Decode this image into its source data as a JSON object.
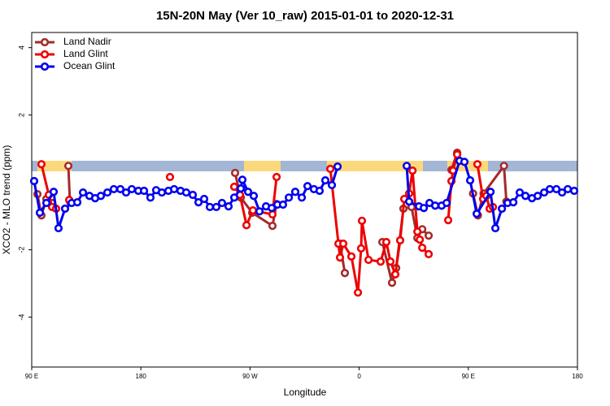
{
  "chart_data": {
    "type": "line",
    "title": "15N-20N May (Ver 10_raw)   2015-01-01 to 2020-12-31",
    "x_label": "Longitude",
    "y_label": "XCO2 - MLO trend (ppm)",
    "xlim": [
      90,
      540
    ],
    "ylim": [
      -5.48,
      4.45
    ],
    "xticks": [
      {
        "value": 90,
        "label": "90 E"
      },
      {
        "value": 180,
        "label": "180"
      },
      {
        "value": 270,
        "label": "90 W"
      },
      {
        "value": 360,
        "label": "0"
      },
      {
        "value": 450,
        "label": "90 E"
      },
      {
        "value": 540,
        "label": "180"
      }
    ],
    "yticks": [
      -4,
      -2,
      2,
      4
    ],
    "legend": "top-left",
    "series": [
      {
        "name": "Land Nadir",
        "color": "#a52a2a",
        "x": [
          94.7,
          98.0,
          102.1,
          106.8,
          null,
          120.2,
          121.5,
          null,
          257.7,
          262.4,
          271.8,
          288.5,
          291.9,
          null,
          344.2,
          348.2,
          null,
          379.1,
          387.1,
          390.5,
          396.5,
          403.2,
          408.0,
          412.0,
          417.3,
          null,
          436.1,
          440.8,
          442.8,
          null,
          453.9,
          457.9,
          462.6,
          479.4,
          481.4
        ],
        "values": [
          -0.35,
          -0.98,
          -0.49,
          -0.61,
          null,
          0.49,
          -0.57,
          null,
          0.28,
          -0.45,
          -0.9,
          -1.29,
          -0.64,
          null,
          -1.82,
          -2.69,
          null,
          -1.77,
          -2.98,
          -2.54,
          -0.78,
          -0.73,
          -1.65,
          -1.39,
          -1.58,
          null,
          0.37,
          0.88,
          0.64,
          null,
          -0.33,
          -0.98,
          -0.33,
          0.49,
          -0.57
        ]
      },
      {
        "name": "Land Glint",
        "color": "#ee0000",
        "x": [
          98.0,
          104.1,
          106.8,
          110.1,
          null,
          120.9,
          null,
          204.0,
          null,
          257.0,
          261.7,
          267.1,
          272.4,
          288.5,
          291.9,
          null,
          336.2,
          342.9,
          344.2,
          346.9,
          353.6,
          359.0,
          361.6,
          362.3,
          367.7,
          377.7,
          382.4,
          385.8,
          389.8,
          393.8,
          397.2,
          401.2,
          404.0,
          408.0,
          410.0,
          412.0,
          417.3,
          null,
          433.4,
          436.1,
          437.4,
          440.8,
          null,
          457.5,
          462.2,
          464.9,
          467.6,
          470.3
        ],
        "values": [
          0.54,
          -0.37,
          -0.73,
          -0.78,
          null,
          -0.52,
          null,
          0.16,
          null,
          -0.13,
          -0.37,
          -1.27,
          -0.83,
          -0.95,
          0.16,
          null,
          0.4,
          -1.82,
          -2.23,
          -1.82,
          -2.2,
          -3.27,
          -1.96,
          -1.14,
          -2.3,
          -2.35,
          -1.77,
          -2.35,
          -2.73,
          -1.72,
          -0.49,
          -0.33,
          0.35,
          -1.46,
          -1.7,
          -1.94,
          -2.13,
          null,
          -1.12,
          0.04,
          0.35,
          0.83,
          null,
          0.54,
          -0.49,
          -0.4,
          -0.78,
          -0.73
        ]
      },
      {
        "name": "Ocean Glint",
        "color": "#0000ee",
        "x": [
          92.0,
          96.7,
          102.1,
          108.1,
          112.1,
          117.5,
          122.9,
          127.6,
          132.3,
          137.6,
          142.3,
          147.0,
          152.4,
          157.7,
          163.1,
          167.8,
          172.5,
          177.9,
          182.6,
          187.9,
          192.6,
          197.3,
          202.7,
          207.4,
          212.7,
          217.4,
          222.8,
          227.5,
          232.2,
          236.9,
          242.2,
          246.9,
          252.3,
          257.0,
          262.4,
          263.7,
          268.4,
          273.1,
          277.8,
          283.2,
          287.9,
          292.6,
          297.2,
          302.0,
          307.3,
          312.7,
          317.4,
          322.7,
          327.4,
          332.1,
          337.5,
          342.2,
          null,
          399.2,
          401.2,
          409.3,
          413.3,
          418.0,
          422.7,
          428.0,
          432.1,
          442.8,
          446.8,
          451.5,
          456.9,
          468.3,
          472.3,
          477.7,
          482.4,
          487.1,
          492.4,
          497.1,
          502.5,
          507.2,
          512.5,
          517.2,
          522.6,
          527.3,
          532.0,
          537.3
        ],
        "values": [
          0.04,
          -0.9,
          -0.61,
          -0.28,
          -1.36,
          -0.78,
          -0.61,
          -0.59,
          -0.3,
          -0.4,
          -0.47,
          -0.4,
          -0.3,
          -0.2,
          -0.2,
          -0.3,
          -0.2,
          -0.25,
          -0.25,
          -0.45,
          -0.23,
          -0.3,
          -0.25,
          -0.2,
          -0.25,
          -0.3,
          -0.37,
          -0.59,
          -0.49,
          -0.73,
          -0.73,
          -0.61,
          -0.71,
          -0.45,
          -0.18,
          0.08,
          -0.28,
          -0.4,
          -0.86,
          -0.71,
          -0.76,
          -0.66,
          -0.66,
          -0.45,
          -0.28,
          -0.45,
          -0.11,
          -0.2,
          -0.25,
          0.06,
          -0.08,
          0.47,
          null,
          0.49,
          -0.57,
          -0.71,
          -0.76,
          -0.61,
          -0.69,
          -0.69,
          -0.61,
          0.64,
          0.61,
          0.06,
          -0.93,
          -0.28,
          -1.36,
          -0.78,
          -0.61,
          -0.59,
          -0.3,
          -0.4,
          -0.47,
          -0.4,
          -0.3,
          -0.2,
          -0.2,
          -0.3,
          -0.2,
          -0.25
        ]
      }
    ]
  }
}
